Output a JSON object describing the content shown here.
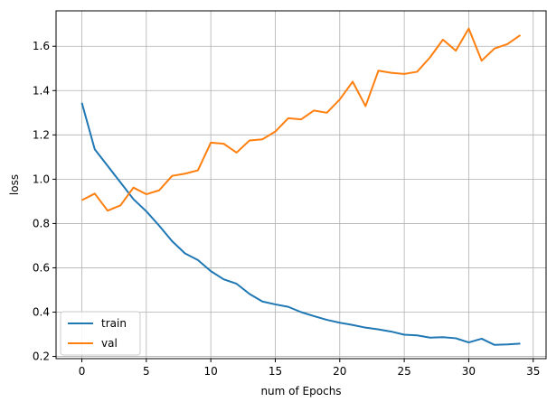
{
  "chart_data": {
    "type": "line",
    "xlabel": "num of Epochs",
    "ylabel": "loss",
    "xlim": [
      -2.0,
      36.0
    ],
    "ylim": [
      0.19,
      1.76
    ],
    "grid": true,
    "legend_position": "lower-left",
    "xticks": [
      0,
      5,
      10,
      15,
      20,
      25,
      30,
      35
    ],
    "yticks": [
      0.2,
      0.4,
      0.6,
      0.8,
      1.0,
      1.2,
      1.4,
      1.6
    ],
    "ytick_labels": [
      "0.2",
      "0.4",
      "0.6",
      "0.8",
      "1.0",
      "1.2",
      "1.4",
      "1.6"
    ],
    "x": [
      0,
      1,
      2,
      3,
      4,
      5,
      6,
      7,
      8,
      9,
      10,
      11,
      12,
      13,
      14,
      15,
      16,
      17,
      18,
      19,
      20,
      21,
      22,
      23,
      24,
      25,
      26,
      27,
      28,
      29,
      30,
      31,
      32,
      33,
      34
    ],
    "series": [
      {
        "name": "train",
        "color": "#1f77b4",
        "values": [
          1.345,
          1.135,
          1.06,
          0.985,
          0.91,
          0.855,
          0.79,
          0.72,
          0.665,
          0.635,
          0.585,
          0.548,
          0.528,
          0.482,
          0.448,
          0.435,
          0.424,
          0.4,
          0.382,
          0.365,
          0.352,
          0.342,
          0.33,
          0.322,
          0.312,
          0.298,
          0.295,
          0.285,
          0.287,
          0.282,
          0.263,
          0.28,
          0.252,
          0.254,
          0.258
        ]
      },
      {
        "name": "val",
        "color": "#ff7f0e",
        "values": [
          0.905,
          0.935,
          0.858,
          0.882,
          0.962,
          0.932,
          0.95,
          1.015,
          1.025,
          1.04,
          1.165,
          1.16,
          1.12,
          1.175,
          1.18,
          1.215,
          1.275,
          1.27,
          1.31,
          1.3,
          1.36,
          1.44,
          1.33,
          1.49,
          1.48,
          1.475,
          1.485,
          1.55,
          1.63,
          1.58,
          1.68,
          1.535,
          1.59,
          1.61,
          1.65
        ]
      }
    ]
  }
}
